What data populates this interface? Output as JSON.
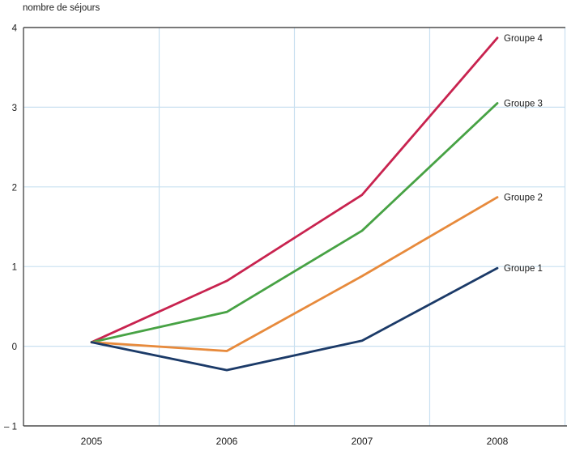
{
  "chart_data": {
    "type": "line",
    "title": "",
    "ylabel": "nombre de séjours",
    "xlabel": "",
    "categories": [
      "2005",
      "2006",
      "2007",
      "2008"
    ],
    "series": [
      {
        "name": "Groupe 4",
        "color": "#c8234f",
        "values": [
          0.05,
          0.82,
          1.9,
          3.87
        ]
      },
      {
        "name": "Groupe 3",
        "color": "#47a244",
        "values": [
          0.05,
          0.43,
          1.45,
          3.05
        ]
      },
      {
        "name": "Groupe 2",
        "color": "#e78a3c",
        "values": [
          0.05,
          -0.06,
          0.88,
          1.87
        ]
      },
      {
        "name": "Groupe 1",
        "color": "#1b3a68",
        "values": [
          0.05,
          -0.3,
          0.07,
          0.98
        ]
      }
    ],
    "ylim": [
      -1,
      4
    ],
    "yticks": [
      {
        "value": 4,
        "label": "4"
      },
      {
        "value": 3,
        "label": "3"
      },
      {
        "value": 2,
        "label": "2"
      },
      {
        "value": 1,
        "label": "1"
      },
      {
        "value": 0,
        "label": "0"
      },
      {
        "value": -1,
        "label": "– 1"
      }
    ],
    "grid": true,
    "grid_color": "#c9e0f0",
    "axis_color": "#4d4d4d",
    "text_color": "#1a1a1a",
    "legend_position": "labels-at-line-ends-right"
  }
}
